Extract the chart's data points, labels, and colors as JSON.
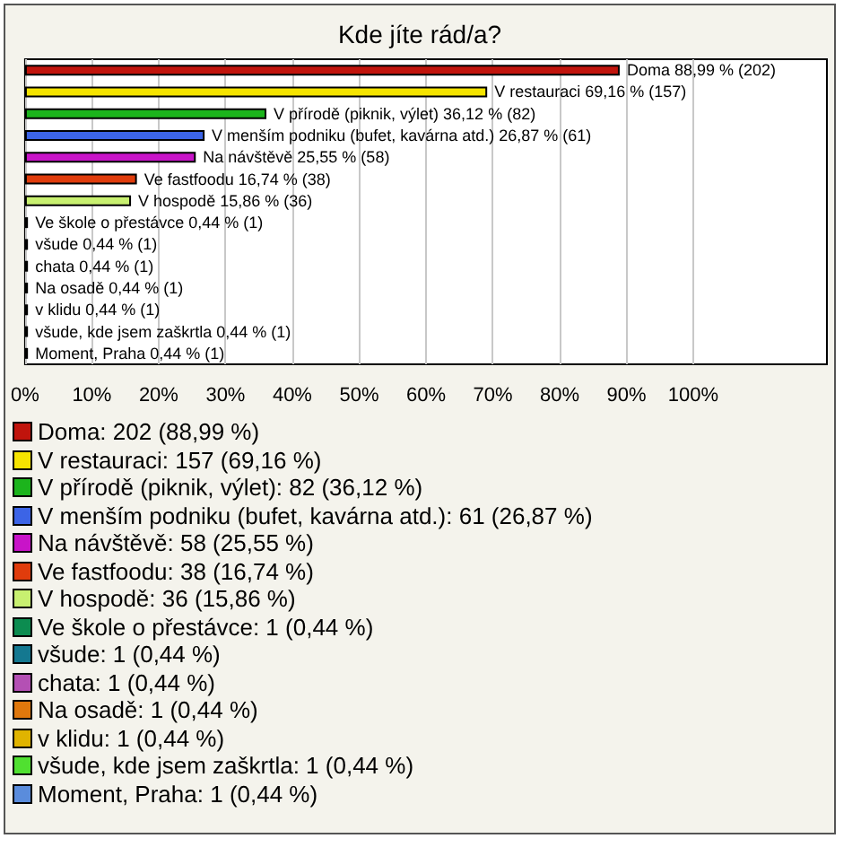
{
  "chart_data": {
    "type": "bar",
    "orientation": "horizontal",
    "title": "Kde jíte rád/a?",
    "categories": [
      null,
      null,
      null,
      null,
      null,
      null,
      null,
      null,
      null,
      null,
      null,
      null,
      null,
      null
    ],
    "values": [
      88.99,
      69.16,
      36.12,
      26.87,
      25.55,
      16.74,
      15.86,
      0.44,
      0.44,
      0.44,
      0.44,
      0.44,
      0.44,
      0.44
    ],
    "value_labels": [
      "Doma 88,99 % (202)",
      "V restauraci 69,16 % (157)",
      "V přírodě (piknik, výlet) 36,12 % (82)",
      "V menším podniku (bufet, kavárna atd.) 26,87 % (61)",
      "Na návštěvě 25,55 % (58)",
      "Ve fastfoodu 16,74 % (38)",
      "V hospodě 15,86 % (36)",
      "Ve škole o přestávce 0,44 % (1)",
      "všude 0,44 % (1)",
      "chata 0,44 % (1)",
      "Na osadě 0,44 % (1)",
      "v klidu 0,44 % (1)",
      "všude, kde jsem zaškrtla 0,44 % (1)",
      "Moment, Praha 0,44 % (1)"
    ],
    "colors": [
      "#c0140c",
      "#f5e400",
      "#1cb41c",
      "#3c64e6",
      "#c814c8",
      "#e03c0c",
      "#c8f070",
      "#0c8c50",
      "#147890",
      "#b450b4",
      "#e0780c",
      "#e0b400",
      "#50e030",
      "#5a8cdc"
    ],
    "xlim": [
      0,
      120
    ],
    "xticks": [
      {
        "value": 0,
        "label": "0%"
      },
      {
        "value": 10,
        "label": "10%"
      },
      {
        "value": 20,
        "label": "20%"
      },
      {
        "value": 30,
        "label": "30%"
      },
      {
        "value": 40,
        "label": "40%"
      },
      {
        "value": 50,
        "label": "50%"
      },
      {
        "value": 60,
        "label": "60%"
      },
      {
        "value": 70,
        "label": "70%"
      },
      {
        "value": 80,
        "label": "80%"
      },
      {
        "value": 90,
        "label": "90%"
      },
      {
        "value": 100,
        "label": "100%"
      }
    ],
    "grid": "x",
    "tick_labels": "x",
    "annotations": [
      "Doma: 202 (88,99 %)",
      "V restauraci: 157 (69,16 %)",
      "V přírodě (piknik, výlet): 82 (36,12 %)",
      "V menším podniku (bufet, kavárna atd.): 61 (26,87 %)",
      "Na návštěvě: 58 (25,55 %)",
      "Ve fastfoodu: 38 (16,74 %)",
      "V hospodě: 36 (15,86 %)",
      "Ve škole o přestávce: 1 (0,44 %)",
      "všude: 1 (0,44 %)",
      "chata: 1 (0,44 %)",
      "Na osadě: 1 (0,44 %)",
      "v klidu: 1 (0,44 %)",
      "všude, kde jsem zaškrtla: 1 (0,44 %)",
      "Moment, Praha: 1 (0,44 %)"
    ]
  }
}
